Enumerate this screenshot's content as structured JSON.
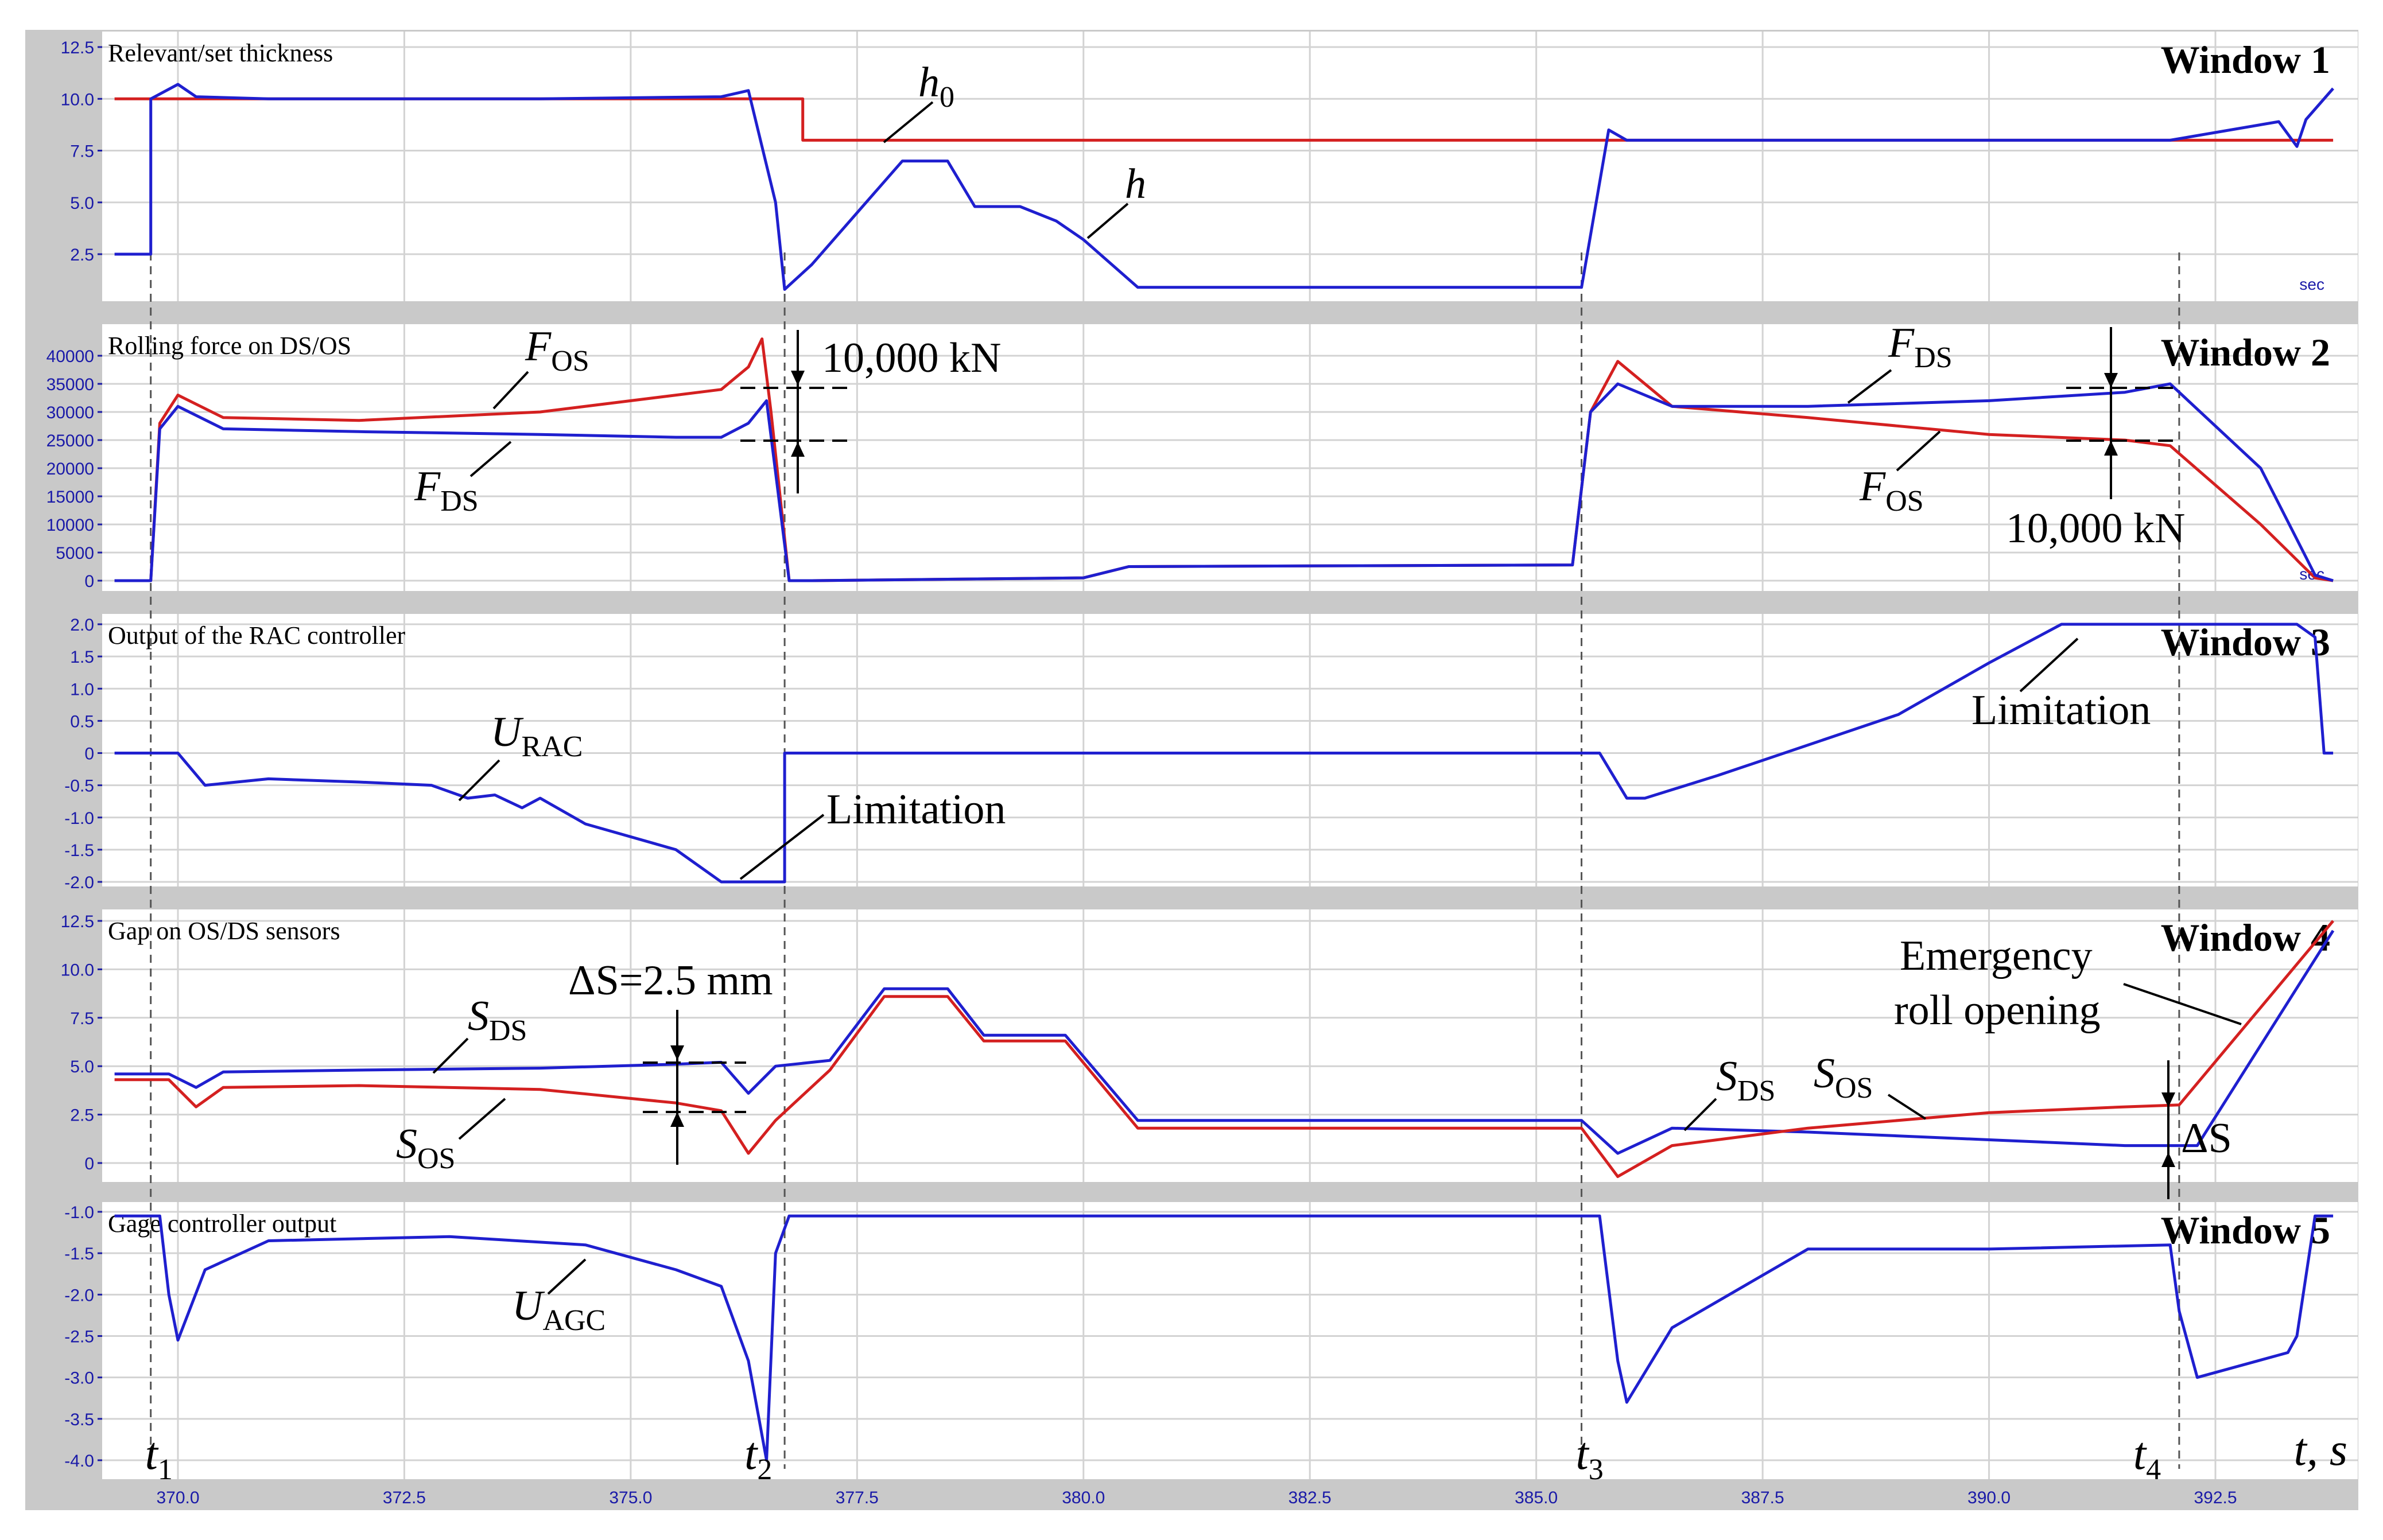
{
  "chart_data": [
    {
      "type": "line",
      "panel": "window-1",
      "title": "Relevant/set thickness",
      "window_label": "Window 1",
      "unit_label": "sec",
      "ylim": [
        0,
        12.5
      ],
      "yticks": [
        "12.5",
        "10.0",
        "7.5",
        "5.0",
        "2.5"
      ],
      "ytick_values": [
        12.5,
        10.0,
        7.5,
        5.0,
        2.5
      ],
      "series": [
        {
          "name": "h0",
          "color": "#d42020",
          "x": [
            369.3,
            376.9,
            376.9,
            393.8
          ],
          "y": [
            10.0,
            10.0,
            8.0,
            8.0
          ]
        },
        {
          "name": "h",
          "color": "#1f1fcf",
          "x": [
            369.3,
            369.7,
            369.7,
            370.0,
            370.2,
            371.0,
            374.0,
            376.0,
            376.3,
            376.6,
            376.7,
            377.0,
            377.3,
            378.0,
            378.5,
            378.8,
            379.3,
            379.7,
            380.0,
            380.6,
            385.5,
            385.8,
            386.0,
            391.0,
            392.0,
            393.2,
            393.4,
            393.5,
            393.8
          ],
          "y": [
            2.5,
            2.5,
            10.0,
            10.7,
            10.1,
            10.0,
            10.0,
            10.1,
            10.4,
            5.0,
            0.8,
            2.0,
            3.5,
            7.0,
            7.0,
            4.8,
            4.8,
            4.1,
            3.2,
            0.9,
            0.9,
            8.5,
            8.0,
            8.0,
            8.0,
            8.9,
            7.7,
            9.0,
            10.5
          ]
        }
      ],
      "annotations": [
        {
          "text": "h",
          "sub": "0"
        },
        {
          "text": "h",
          "sub": ""
        }
      ]
    },
    {
      "type": "line",
      "panel": "window-2",
      "title": "Rolling force on DS/OS",
      "window_label": "Window 2",
      "unit_label": "sec",
      "ylim": [
        -2000,
        44000
      ],
      "yticks": [
        "40000",
        "35000",
        "30000",
        "25000",
        "20000",
        "15000",
        "10000",
        "5000",
        "0"
      ],
      "ytick_values": [
        40000,
        35000,
        30000,
        25000,
        20000,
        15000,
        10000,
        5000,
        0
      ],
      "series": [
        {
          "name": "F_OS",
          "color": "#d42020",
          "x": [
            369.3,
            369.7,
            369.8,
            370.0,
            370.5,
            372.0,
            374.0,
            375.5,
            376.0,
            376.3,
            376.45,
            376.55,
            376.75,
            377.0,
            380.0,
            380.5,
            385.4,
            385.6,
            385.9,
            386.5,
            388.0,
            390.0,
            391.5,
            392.0,
            393.0,
            393.6,
            393.8
          ],
          "y": [
            0,
            0,
            28000,
            33000,
            29000,
            28500,
            30000,
            33000,
            34000,
            38000,
            43000,
            30000,
            0,
            0,
            500,
            2500,
            2800,
            30000,
            39000,
            31000,
            29000,
            26000,
            25000,
            24000,
            10000,
            500,
            0
          ]
        },
        {
          "name": "F_DS",
          "color": "#1f1fcf",
          "x": [
            369.3,
            369.7,
            369.8,
            370.0,
            370.5,
            372.0,
            374.0,
            375.5,
            376.0,
            376.3,
            376.5,
            376.75,
            377.0,
            380.0,
            380.5,
            385.4,
            385.6,
            385.9,
            386.5,
            388.0,
            390.0,
            391.5,
            392.0,
            393.0,
            393.6,
            393.8
          ],
          "y": [
            0,
            0,
            27000,
            31000,
            27000,
            26500,
            26000,
            25500,
            25500,
            28000,
            32000,
            0,
            0,
            500,
            2500,
            2800,
            30000,
            35000,
            31000,
            31000,
            32000,
            33500,
            35000,
            20000,
            1000,
            0
          ]
        }
      ],
      "annotations": [
        {
          "text": "F",
          "sub": "OS"
        },
        {
          "text": "F",
          "sub": "DS"
        },
        {
          "text": "F",
          "sub": "DS"
        },
        {
          "text": "F",
          "sub": "OS"
        },
        {
          "text": "10,000 kN"
        },
        {
          "text": "10,000 kN"
        }
      ]
    },
    {
      "type": "line",
      "panel": "window-3",
      "title": "Output of the RAC controller",
      "window_label": "Window 3",
      "ylim": [
        -2.0,
        2.0
      ],
      "yticks": [
        "2.0",
        "1.5",
        "1.0",
        "0.5",
        "0",
        "-0.5",
        "-1.0",
        "-1.5",
        "-2.0"
      ],
      "ytick_values": [
        2.0,
        1.5,
        1.0,
        0.5,
        0.0,
        -0.5,
        -1.0,
        -1.5,
        -2.0
      ],
      "series": [
        {
          "name": "U_RAC",
          "color": "#1f1fcf",
          "x": [
            369.3,
            369.7,
            370.0,
            370.3,
            371.0,
            372.0,
            372.8,
            373.2,
            373.5,
            373.8,
            374.0,
            374.5,
            375.5,
            376.0,
            376.7,
            376.7,
            385.7,
            386.0,
            386.2,
            387.0,
            389.0,
            390.0,
            390.8,
            393.4,
            393.6,
            393.7,
            393.8
          ],
          "y": [
            0,
            0,
            0,
            -0.5,
            -0.4,
            -0.45,
            -0.5,
            -0.7,
            -0.65,
            -0.85,
            -0.7,
            -1.1,
            -1.5,
            -2.0,
            -2.0,
            0,
            0,
            -0.7,
            -0.7,
            -0.35,
            0.6,
            1.4,
            2.0,
            2.0,
            1.8,
            0,
            0
          ]
        }
      ],
      "annotations": [
        {
          "text": "U",
          "sub": "RAC"
        },
        {
          "text": "Limitation"
        },
        {
          "text": "Limitation"
        }
      ]
    },
    {
      "type": "line",
      "panel": "window-4",
      "title": "Gap on OS/DS sensors",
      "window_label": "Window 4",
      "ylim": [
        -1.0,
        12.5
      ],
      "yticks": [
        "12.5",
        "10.0",
        "7.5",
        "5.0",
        "2.5",
        "0"
      ],
      "ytick_values": [
        12.5,
        10.0,
        7.5,
        5.0,
        2.5,
        0.0
      ],
      "series": [
        {
          "name": "S_DS",
          "color": "#1f1fcf",
          "x": [
            369.3,
            369.9,
            370.2,
            370.5,
            372.0,
            374.0,
            375.5,
            376.0,
            376.3,
            376.6,
            377.2,
            377.8,
            378.5,
            378.9,
            379.8,
            380.6,
            385.5,
            385.9,
            386.5,
            388.0,
            390.0,
            391.5,
            392.1,
            392.3,
            393.8
          ],
          "y": [
            4.6,
            4.6,
            3.9,
            4.7,
            4.8,
            4.9,
            5.1,
            5.2,
            3.6,
            5.0,
            5.3,
            9.0,
            9.0,
            6.6,
            6.6,
            2.2,
            2.2,
            0.5,
            1.8,
            1.6,
            1.2,
            0.9,
            0.9,
            0.9,
            12.0
          ]
        },
        {
          "name": "S_OS",
          "color": "#d42020",
          "x": [
            369.3,
            369.9,
            370.2,
            370.5,
            372.0,
            374.0,
            375.5,
            376.0,
            376.3,
            376.6,
            377.2,
            377.8,
            378.5,
            378.9,
            379.8,
            380.6,
            385.5,
            385.9,
            386.5,
            388.0,
            390.0,
            391.5,
            392.1,
            393.8
          ],
          "y": [
            4.3,
            4.3,
            2.9,
            3.9,
            4.0,
            3.8,
            3.1,
            2.7,
            0.5,
            2.2,
            4.8,
            8.6,
            8.6,
            6.3,
            6.3,
            1.8,
            1.8,
            -0.7,
            0.9,
            1.8,
            2.6,
            2.9,
            3.0,
            12.5
          ]
        }
      ],
      "annotations": [
        {
          "text": "S",
          "sub": "DS"
        },
        {
          "text": "S",
          "sub": "OS"
        },
        {
          "text": "S",
          "sub": "DS"
        },
        {
          "text": "S",
          "sub": "OS"
        },
        {
          "text": "ΔS=2.5 mm"
        },
        {
          "text": "Emergency"
        },
        {
          "text": "roll opening"
        },
        {
          "text": "ΔS"
        }
      ]
    },
    {
      "type": "line",
      "panel": "window-5",
      "title": "Gage controller output",
      "window_label": "Window 5",
      "ylim": [
        -4.0,
        -1.0
      ],
      "yticks": [
        "-1.0",
        "-1.5",
        "-2.0",
        "-2.5",
        "-3.0",
        "-3.5",
        "-4.0"
      ],
      "ytick_values": [
        -1.0,
        -1.5,
        -2.0,
        -2.5,
        -3.0,
        -3.5,
        -4.0
      ],
      "series": [
        {
          "name": "U_AGC",
          "color": "#1f1fcf",
          "x": [
            369.3,
            369.8,
            369.9,
            370.0,
            370.3,
            371.0,
            373.0,
            374.5,
            375.5,
            376.0,
            376.3,
            376.5,
            376.6,
            376.75,
            385.7,
            385.9,
            386.0,
            386.5,
            388.0,
            390.0,
            392.0,
            392.1,
            392.3,
            393.3,
            393.4,
            393.6,
            393.8
          ],
          "y": [
            -1.05,
            -1.05,
            -2.0,
            -2.55,
            -1.7,
            -1.35,
            -1.3,
            -1.4,
            -1.7,
            -1.9,
            -2.8,
            -4.0,
            -1.5,
            -1.05,
            -1.05,
            -2.8,
            -3.3,
            -2.4,
            -1.45,
            -1.45,
            -1.4,
            -2.2,
            -3.0,
            -2.7,
            -2.5,
            -1.05,
            -1.05
          ]
        }
      ],
      "annotations": [
        {
          "text": "U",
          "sub": "AGC"
        }
      ]
    }
  ],
  "x_axis": {
    "xlim": [
      369.3,
      393.8
    ],
    "ticks": [
      "370.0",
      "372.5",
      "375.0",
      "377.5",
      "380.0",
      "382.5",
      "385.0",
      "387.5",
      "390.0",
      "392.5"
    ],
    "tick_values": [
      370.0,
      372.5,
      375.0,
      377.5,
      380.0,
      382.5,
      385.0,
      387.5,
      390.0,
      392.5
    ],
    "label": "t,  s"
  },
  "events": [
    {
      "label": "t",
      "sub": "1",
      "x": 369.7
    },
    {
      "label": "t",
      "sub": "2",
      "x": 376.7
    },
    {
      "label": "t",
      "sub": "3",
      "x": 385.5
    },
    {
      "label": "t",
      "sub": "4",
      "x": 392.1
    }
  ],
  "colors": {
    "panel_bg": "#ffffff",
    "frame": "#c9c9c9",
    "grid": "#cfcfcf",
    "red": "#d42020",
    "blue": "#1f1fcf"
  }
}
